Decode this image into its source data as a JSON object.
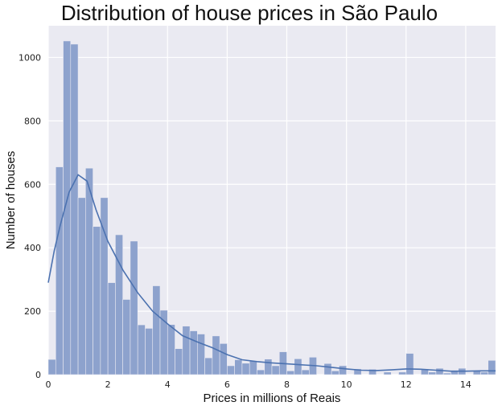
{
  "chart_data": {
    "type": "bar",
    "title": "Distribution of house prices in São Paulo",
    "xlabel": "Prices in millions of Reais",
    "ylabel": "Number of houses",
    "xlim": [
      0,
      15
    ],
    "ylim": [
      0,
      1100
    ],
    "x_ticks": [
      "0",
      "2",
      "4",
      "6",
      "8",
      "10",
      "12",
      "14"
    ],
    "y_ticks": [
      "0",
      "200",
      "400",
      "600",
      "800",
      "1000"
    ],
    "grid": true,
    "bin_edges": [
      0,
      0.25,
      0.5,
      0.75,
      1.0,
      1.25,
      1.5,
      1.75,
      2.0,
      2.25,
      2.5,
      2.75,
      3.0,
      3.25,
      3.5,
      3.75,
      4.0,
      4.25,
      4.5,
      4.75,
      5.0,
      5.25,
      5.5,
      5.75,
      6.0,
      6.25,
      6.5,
      6.75,
      7.0,
      7.25,
      7.5,
      7.75,
      8.0,
      8.25,
      8.5,
      8.75,
      9.0,
      9.25,
      9.5,
      9.75,
      10.0,
      10.25,
      10.5,
      10.75,
      11.0,
      11.25,
      11.5,
      11.75,
      12.0,
      12.25,
      12.5,
      12.75,
      13.0,
      13.25,
      13.5,
      13.75,
      14.0,
      14.25,
      14.5,
      14.75,
      15.0
    ],
    "values": [
      48,
      655,
      1052,
      1042,
      558,
      651,
      467,
      558,
      290,
      441,
      237,
      421,
      157,
      146,
      280,
      203,
      158,
      82,
      153,
      138,
      128,
      53,
      122,
      98,
      28,
      47,
      36,
      43,
      15,
      49,
      28,
      72,
      12,
      50,
      15,
      55,
      0,
      35,
      12,
      28,
      0,
      18,
      0,
      17,
      0,
      8,
      0,
      8,
      67,
      0,
      18,
      8,
      20,
      5,
      12,
      20,
      0,
      12,
      8,
      45
    ],
    "kde": {
      "x": [
        0,
        0.2,
        0.4,
        0.7,
        1.0,
        1.3,
        1.6,
        2.0,
        2.5,
        3.0,
        3.5,
        4.0,
        4.5,
        5.0,
        5.5,
        6.0,
        6.5,
        7.0,
        7.5,
        8.0,
        8.5,
        9.0,
        9.5,
        10.0,
        10.5,
        11.0,
        11.5,
        12.0,
        12.5,
        13.0,
        13.5,
        14.0,
        14.5,
        15.0
      ],
      "y": [
        290,
        390,
        470,
        575,
        630,
        610,
        520,
        420,
        330,
        258,
        200,
        160,
        123,
        103,
        85,
        63,
        47,
        41,
        37,
        34,
        31,
        28,
        23,
        18,
        14,
        13,
        15,
        18,
        17,
        14,
        11,
        11,
        12,
        12
      ]
    },
    "colors": {
      "bar": "#8da2cd",
      "line": "#4c72b0",
      "plot_bg": "#eaeaf2",
      "grid": "#ffffff"
    }
  }
}
